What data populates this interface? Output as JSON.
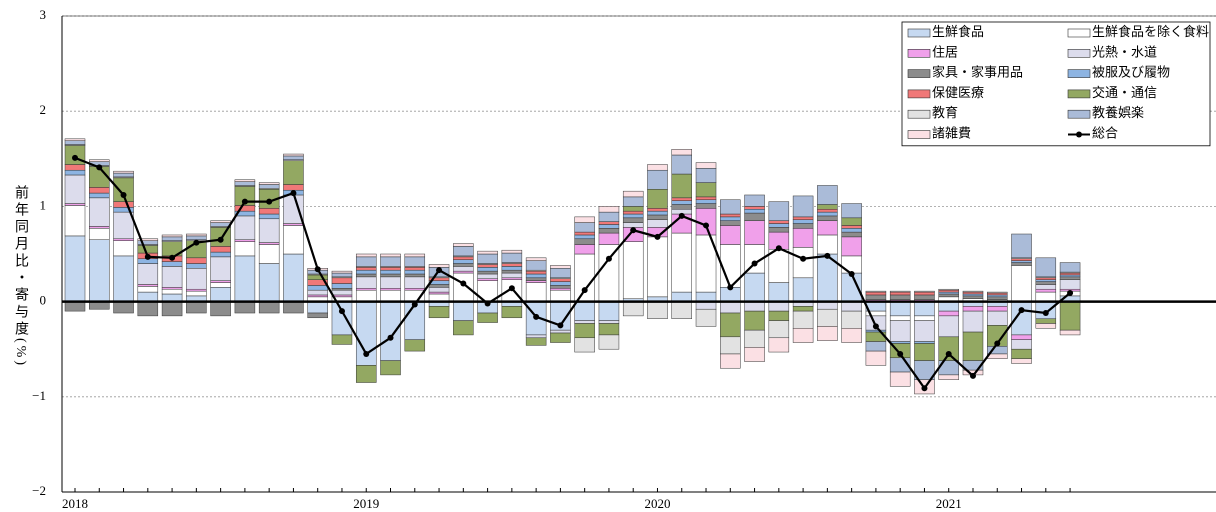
{
  "chart_data": {
    "type": "bar",
    "y_label": "前年同月比・寄与度(%)",
    "categories": [
      "2018",
      null,
      null,
      null,
      null,
      null,
      null,
      null,
      null,
      null,
      null,
      null,
      "2019",
      null,
      null,
      null,
      null,
      null,
      null,
      null,
      null,
      null,
      null,
      null,
      "2020",
      null,
      null,
      null,
      null,
      null,
      null,
      null,
      null,
      null,
      null,
      null,
      "2021",
      null,
      null,
      null,
      null,
      null
    ],
    "ylim": [
      -2,
      3
    ],
    "yticks": [
      {
        "value": -2,
        "label": "−2"
      },
      {
        "value": -1,
        "label": "−1"
      },
      0,
      1,
      2,
      3
    ],
    "grid": true,
    "legend": "upper right",
    "series": [
      {
        "name": "生鮮食品",
        "color": "#c6d9f1",
        "values": [
          0.69,
          0.65,
          0.48,
          0.1,
          0.08,
          0.06,
          0.15,
          0.48,
          0.4,
          0.5,
          -0.12,
          -0.35,
          -0.67,
          -0.62,
          -0.4,
          -0.05,
          -0.2,
          -0.12,
          -0.05,
          -0.35,
          -0.3,
          -0.2,
          -0.2,
          0.03,
          0.05,
          0.1,
          0.1,
          0.15,
          0.3,
          0.2,
          0.25,
          0.5,
          0.3,
          -0.1,
          -0.15,
          -0.15,
          -0.1,
          -0.05,
          -0.05,
          -0.35,
          -0.18,
          0.06
        ]
      },
      {
        "name": "生鮮食品を除く食料",
        "color": "#ffffff",
        "values": [
          0.32,
          0.12,
          0.16,
          0.06,
          0.05,
          0.05,
          0.05,
          0.15,
          0.2,
          0.3,
          0.05,
          0.05,
          0.12,
          0.12,
          0.12,
          0.08,
          0.3,
          0.22,
          0.23,
          0.2,
          0.12,
          0.5,
          0.6,
          0.6,
          0.63,
          0.62,
          0.6,
          0.45,
          0.3,
          0.35,
          0.32,
          0.2,
          0.18,
          -0.05,
          -0.05,
          -0.05,
          0.05,
          0.03,
          0.02,
          0.38,
          0.1,
          0.05
        ]
      },
      {
        "name": "住居",
        "color": "#f0a0ea",
        "values": [
          0.02,
          0.02,
          0.02,
          0.02,
          0.02,
          0.02,
          0.02,
          0.02,
          0.02,
          0.02,
          0.02,
          0.02,
          0.02,
          0.02,
          0.02,
          0.02,
          0.02,
          0.02,
          0.02,
          0.02,
          0.02,
          0.1,
          0.12,
          0.15,
          0.1,
          0.2,
          0.28,
          0.2,
          0.25,
          0.18,
          0.2,
          0.15,
          0.2,
          0.02,
          0.02,
          0.02,
          -0.05,
          -0.05,
          -0.05,
          -0.05,
          0.03,
          0.02
        ]
      },
      {
        "name": "光熱・水道",
        "color": "#dcdcec",
        "values": [
          0.3,
          0.3,
          0.28,
          0.22,
          0.22,
          0.22,
          0.25,
          0.25,
          0.25,
          0.3,
          0.05,
          0.05,
          0.12,
          0.12,
          0.12,
          0.05,
          0.05,
          0.05,
          0.05,
          -0.03,
          -0.03,
          -0.03,
          -0.03,
          0.05,
          0.08,
          0.05,
          -0.08,
          -0.12,
          -0.1,
          -0.1,
          -0.05,
          -0.08,
          -0.1,
          -0.15,
          -0.22,
          -0.22,
          -0.22,
          -0.22,
          -0.15,
          -0.1,
          0.05,
          0.1
        ]
      },
      {
        "name": "家具・家事用品",
        "color": "#8c8c8c",
        "values": [
          -0.1,
          -0.08,
          -0.12,
          -0.15,
          -0.15,
          -0.12,
          -0.15,
          -0.12,
          -0.12,
          -0.12,
          -0.05,
          0.02,
          0.03,
          0.03,
          0.03,
          0.03,
          0.03,
          0.03,
          0.03,
          0.03,
          0.03,
          0.06,
          0.05,
          0.05,
          0.05,
          0.05,
          0.05,
          0.05,
          0.08,
          0.05,
          0.05,
          0.05,
          0.05,
          0.05,
          0.05,
          0.05,
          0.03,
          0.03,
          0.03,
          0.03,
          0.03,
          0.03
        ]
      },
      {
        "name": "被服及び履物",
        "color": "#8db4e2",
        "values": [
          0.05,
          0.05,
          0.05,
          0.05,
          0.05,
          0.05,
          0.05,
          0.05,
          0.05,
          0.05,
          0.05,
          0.05,
          0.04,
          0.04,
          0.04,
          0.04,
          0.04,
          0.04,
          0.04,
          0.04,
          0.04,
          0.04,
          0.04,
          0.04,
          0.04,
          0.04,
          0.04,
          0.04,
          0.04,
          0.04,
          0.04,
          0.04,
          0.04,
          -0.02,
          -0.02,
          -0.02,
          0.02,
          0.02,
          0.02,
          0.02,
          0.02,
          0.02
        ]
      },
      {
        "name": "保健医療",
        "color": "#f07878",
        "values": [
          0.06,
          0.06,
          0.06,
          0.06,
          0.06,
          0.06,
          0.06,
          0.06,
          0.06,
          0.06,
          0.06,
          0.06,
          0.03,
          0.03,
          0.03,
          0.03,
          0.03,
          0.03,
          0.03,
          0.03,
          0.03,
          0.03,
          0.03,
          0.03,
          0.03,
          0.03,
          0.03,
          0.03,
          0.03,
          0.03,
          0.03,
          0.03,
          0.03,
          0.03,
          0.03,
          0.03,
          0.02,
          0.02,
          0.02,
          0.02,
          0.02,
          0.02
        ]
      },
      {
        "name": "交通・通信",
        "color": "#93a862",
        "values": [
          0.2,
          0.22,
          0.25,
          0.08,
          0.15,
          0.18,
          0.2,
          0.2,
          0.2,
          0.25,
          0.05,
          -0.1,
          -0.18,
          -0.15,
          -0.12,
          -0.12,
          -0.15,
          -0.1,
          -0.12,
          -0.08,
          -0.1,
          -0.15,
          -0.12,
          0.05,
          0.2,
          0.25,
          0.15,
          -0.25,
          -0.2,
          -0.1,
          -0.05,
          0.05,
          0.08,
          -0.1,
          -0.15,
          -0.18,
          -0.25,
          -0.3,
          -0.22,
          -0.1,
          -0.05,
          -0.3
        ]
      },
      {
        "name": "教育",
        "color": "#e2e2e2",
        "values": [
          0.01,
          0.01,
          0.01,
          0.01,
          0.01,
          0.01,
          0.01,
          0.01,
          0.01,
          0.01,
          0.01,
          0.01,
          0.01,
          0.01,
          0.01,
          0.01,
          0.01,
          0.01,
          0.01,
          0.01,
          0.01,
          -0.15,
          -0.15,
          -0.15,
          -0.18,
          -0.18,
          -0.18,
          -0.18,
          -0.18,
          -0.18,
          -0.18,
          -0.18,
          -0.18,
          0.01,
          0.01,
          0.01,
          0.01,
          0.01,
          0.01,
          0.01,
          0.01,
          0.01
        ]
      },
      {
        "name": "教養娯楽",
        "color": "#aabbd8",
        "values": [
          0.04,
          0.04,
          0.04,
          0.04,
          0.04,
          0.04,
          0.04,
          0.04,
          0.04,
          0.04,
          0.04,
          0.04,
          0.1,
          0.1,
          0.1,
          0.1,
          0.1,
          0.1,
          0.1,
          0.1,
          0.1,
          0.1,
          0.1,
          0.1,
          0.2,
          0.2,
          0.15,
          0.15,
          0.12,
          0.2,
          0.22,
          0.2,
          0.15,
          -0.1,
          -0.15,
          -0.2,
          -0.15,
          -0.1,
          -0.08,
          0.25,
          0.2,
          0.1
        ]
      },
      {
        "name": "諸雑費",
        "color": "#fbe0e4",
        "values": [
          0.02,
          0.02,
          0.02,
          0.02,
          0.02,
          0.02,
          0.02,
          0.02,
          0.02,
          0.02,
          0.02,
          0.02,
          0.03,
          0.03,
          0.03,
          0.03,
          0.03,
          0.03,
          0.03,
          0.03,
          0.03,
          0.06,
          0.06,
          0.06,
          0.06,
          0.06,
          0.06,
          -0.15,
          -0.15,
          -0.15,
          -0.15,
          -0.15,
          -0.15,
          -0.15,
          -0.15,
          -0.15,
          -0.05,
          -0.05,
          -0.05,
          -0.05,
          -0.05,
          -0.05
        ]
      },
      {
        "name": "総合",
        "color": "#000000",
        "type": "line",
        "values": [
          1.51,
          1.41,
          1.12,
          0.47,
          0.46,
          0.62,
          0.65,
          1.05,
          1.05,
          1.14,
          0.34,
          -0.1,
          -0.55,
          -0.38,
          -0.03,
          0.33,
          0.19,
          -0.02,
          0.14,
          -0.16,
          -0.25,
          0.12,
          0.45,
          0.75,
          0.68,
          0.9,
          0.8,
          0.15,
          0.4,
          0.56,
          0.45,
          0.48,
          0.29,
          -0.26,
          -0.55,
          -0.91,
          -0.55,
          -0.78,
          -0.44,
          -0.09,
          -0.12,
          0.09
        ]
      }
    ]
  }
}
